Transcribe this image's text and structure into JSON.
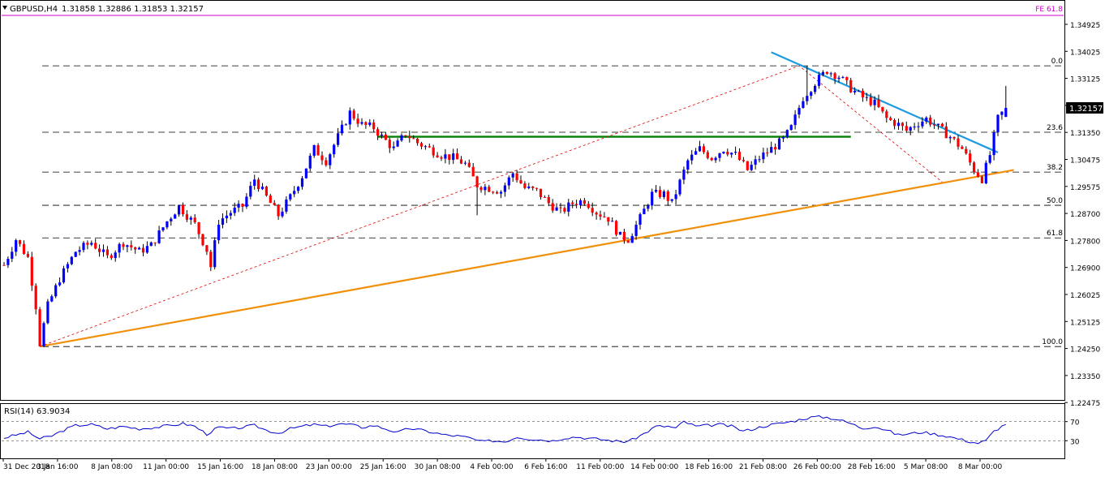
{
  "header": {
    "symbol": "GBPUSD,H4",
    "ohlc": "1.31858 1.32886 1.31853 1.32157",
    "fe_label": "FE 61.8"
  },
  "colors": {
    "bull": "#0000ff",
    "bear": "#ff0000",
    "wick": "#000000",
    "fib_line": "#000000",
    "fe_line": "#cc00cc",
    "fe_text": "#cc00cc",
    "support_line": "#f0900a",
    "resistance_line": "#1e9be0",
    "horizontal_level": "#008000",
    "fib_leg": "#dd0000",
    "rsi_line": "#0000cc",
    "price_tag_bg": "#000000",
    "price_tag_text": "#ffffff"
  },
  "chart_data": [
    {
      "type": "candlestick",
      "name": "GBPUSD,H4",
      "y_axis_ticks": [
        "1.34925",
        "1.34025",
        "1.33125",
        "1.32215",
        "1.31350",
        "1.30475",
        "1.29575",
        "1.28700",
        "1.27800",
        "1.26900",
        "1.26025",
        "1.25125",
        "1.24250",
        "1.23350",
        "1.22475"
      ],
      "ylim": [
        1.2235,
        1.3558
      ],
      "x_axis_ticks": [
        "31 Dec 2018",
        "3 Jan 16:00",
        "8 Jan 08:00",
        "11 Jan 00:00",
        "15 Jan 16:00",
        "18 Jan 08:00",
        "23 Jan 00:00",
        "25 Jan 16:00",
        "30 Jan 08:00",
        "4 Feb 00:00",
        "6 Feb 16:00",
        "11 Feb 00:00",
        "14 Feb 00:00",
        "18 Feb 16:00",
        "21 Feb 08:00",
        "26 Feb 00:00",
        "28 Feb 16:00",
        "5 Mar 08:00",
        "8 Mar 00:00"
      ],
      "current_price": "1.32157",
      "price_path": [
        [
          0,
          1.2695
        ],
        [
          3,
          1.278
        ],
        [
          6,
          1.272
        ],
        [
          8,
          1.256
        ],
        [
          9,
          1.2435
        ],
        [
          11,
          1.256
        ],
        [
          14,
          1.265
        ],
        [
          18,
          1.274
        ],
        [
          22,
          1.277
        ],
        [
          26,
          1.272
        ],
        [
          30,
          1.277
        ],
        [
          34,
          1.274
        ],
        [
          37,
          1.276
        ],
        [
          41,
          1.284
        ],
        [
          44,
          1.289
        ],
        [
          48,
          1.283
        ],
        [
          51,
          1.2745
        ],
        [
          52,
          1.269
        ],
        [
          54,
          1.284
        ],
        [
          57,
          1.287
        ],
        [
          60,
          1.289
        ],
        [
          63,
          1.298
        ],
        [
          66,
          1.292
        ],
        [
          69,
          1.286
        ],
        [
          72,
          1.292
        ],
        [
          75,
          1.299
        ],
        [
          78,
          1.308
        ],
        [
          81,
          1.304
        ],
        [
          84,
          1.312
        ],
        [
          87,
          1.32
        ],
        [
          90,
          1.316
        ],
        [
          93,
          1.315
        ],
        [
          95,
          1.312
        ],
        [
          98,
          1.308
        ],
        [
          101,
          1.313
        ],
        [
          104,
          1.31
        ],
        [
          107,
          1.308
        ],
        [
          110,
          1.306
        ],
        [
          113,
          1.305
        ],
        [
          116,
          1.303
        ],
        [
          119,
          1.296
        ],
        [
          122,
          1.295
        ],
        [
          125,
          1.294
        ],
        [
          128,
          1.3
        ],
        [
          131,
          1.295
        ],
        [
          134,
          1.294
        ],
        [
          137,
          1.29
        ],
        [
          140,
          1.287
        ],
        [
          143,
          1.29
        ],
        [
          146,
          1.291
        ],
        [
          149,
          1.287
        ],
        [
          152,
          1.285
        ],
        [
          155,
          1.279
        ],
        [
          157,
          1.278
        ],
        [
          160,
          1.285
        ],
        [
          163,
          1.293
        ],
        [
          166,
          1.293
        ],
        [
          168,
          1.29
        ],
        [
          170,
          1.297
        ],
        [
          172,
          1.304
        ],
        [
          175,
          1.308
        ],
        [
          178,
          1.305
        ],
        [
          181,
          1.308
        ],
        [
          184,
          1.306
        ],
        [
          187,
          1.301
        ],
        [
          190,
          1.305
        ],
        [
          193,
          1.308
        ],
        [
          196,
          1.311
        ],
        [
          198,
          1.315
        ],
        [
          201,
          1.325
        ],
        [
          204,
          1.33
        ],
        [
          207,
          1.334
        ],
        [
          210,
          1.332
        ],
        [
          213,
          1.328
        ],
        [
          216,
          1.325
        ],
        [
          219,
          1.323
        ],
        [
          222,
          1.318
        ],
        [
          225,
          1.316
        ],
        [
          227,
          1.314
        ],
        [
          229,
          1.316
        ],
        [
          232,
          1.318
        ],
        [
          235,
          1.315
        ],
        [
          238,
          1.312
        ],
        [
          241,
          1.308
        ],
        [
          244,
          1.301
        ],
        [
          246,
          1.298
        ],
        [
          248,
          1.306
        ],
        [
          250,
          1.318
        ],
        [
          252,
          1.3216
        ]
      ],
      "fib_levels": [
        {
          "label": "0.0",
          "value": 1.3355
        },
        {
          "label": "23.6",
          "value": 1.3135
        },
        {
          "label": "38.2",
          "value": 1.3003
        },
        {
          "label": "50.0",
          "value": 1.2893
        },
        {
          "label": "61.8",
          "value": 1.2785
        },
        {
          "label": "100.0",
          "value": 1.2425
        }
      ],
      "fe_level": {
        "label": "FE 61.8",
        "value": 1.355
      },
      "horizontal_level": {
        "value": 1.312,
        "from": 94,
        "to": 213
      },
      "support_trendline": {
        "from": [
          9,
          1.2425
        ],
        "to": [
          254,
          1.301
        ]
      },
      "resistance_trendline": {
        "from": [
          193,
          1.34
        ],
        "to": [
          250,
          1.3068
        ]
      },
      "fib_leg": {
        "from": [
          9,
          1.2425
        ],
        "via": [
          200,
          1.3355
        ],
        "to": [
          236,
          1.297
        ]
      }
    },
    {
      "type": "line",
      "name": "RSI(14) 63.9034",
      "y_axis_ticks": [
        "70",
        "30"
      ],
      "ylim": [
        0,
        100
      ],
      "levels": [
        70,
        30
      ],
      "current": "63.9034",
      "path": [
        [
          0,
          36
        ],
        [
          3,
          42
        ],
        [
          6,
          48
        ],
        [
          9,
          34
        ],
        [
          12,
          40
        ],
        [
          15,
          52
        ],
        [
          18,
          62
        ],
        [
          22,
          64
        ],
        [
          26,
          55
        ],
        [
          30,
          60
        ],
        [
          34,
          55
        ],
        [
          38,
          58
        ],
        [
          42,
          62
        ],
        [
          45,
          66
        ],
        [
          48,
          60
        ],
        [
          51,
          44
        ],
        [
          54,
          58
        ],
        [
          57,
          55
        ],
        [
          60,
          58
        ],
        [
          63,
          62
        ],
        [
          66,
          52
        ],
        [
          69,
          46
        ],
        [
          72,
          55
        ],
        [
          75,
          60
        ],
        [
          78,
          64
        ],
        [
          81,
          60
        ],
        [
          84,
          65
        ],
        [
          87,
          64
        ],
        [
          90,
          58
        ],
        [
          93,
          62
        ],
        [
          96,
          55
        ],
        [
          99,
          47
        ],
        [
          102,
          56
        ],
        [
          105,
          52
        ],
        [
          108,
          47
        ],
        [
          111,
          42
        ],
        [
          114,
          40
        ],
        [
          117,
          36
        ],
        [
          120,
          28
        ],
        [
          123,
          30
        ],
        [
          126,
          28
        ],
        [
          129,
          38
        ],
        [
          132,
          34
        ],
        [
          135,
          32
        ],
        [
          138,
          30
        ],
        [
          141,
          36
        ],
        [
          144,
          38
        ],
        [
          147,
          35
        ],
        [
          150,
          33
        ],
        [
          153,
          30
        ],
        [
          156,
          28
        ],
        [
          158,
          32
        ],
        [
          161,
          45
        ],
        [
          164,
          60
        ],
        [
          167,
          60
        ],
        [
          169,
          56
        ],
        [
          171,
          70
        ],
        [
          174,
          60
        ],
        [
          177,
          62
        ],
        [
          180,
          64
        ],
        [
          183,
          60
        ],
        [
          186,
          50
        ],
        [
          189,
          56
        ],
        [
          192,
          62
        ],
        [
          195,
          66
        ],
        [
          198,
          70
        ],
        [
          201,
          76
        ],
        [
          204,
          80
        ],
        [
          207,
          79
        ],
        [
          210,
          74
        ],
        [
          213,
          66
        ],
        [
          216,
          56
        ],
        [
          219,
          60
        ],
        [
          222,
          52
        ],
        [
          225,
          42
        ],
        [
          228,
          45
        ],
        [
          231,
          48
        ],
        [
          234,
          44
        ],
        [
          237,
          40
        ],
        [
          240,
          34
        ],
        [
          243,
          28
        ],
        [
          245,
          25
        ],
        [
          247,
          30
        ],
        [
          249,
          50
        ],
        [
          251,
          60
        ],
        [
          252,
          64
        ]
      ]
    }
  ]
}
